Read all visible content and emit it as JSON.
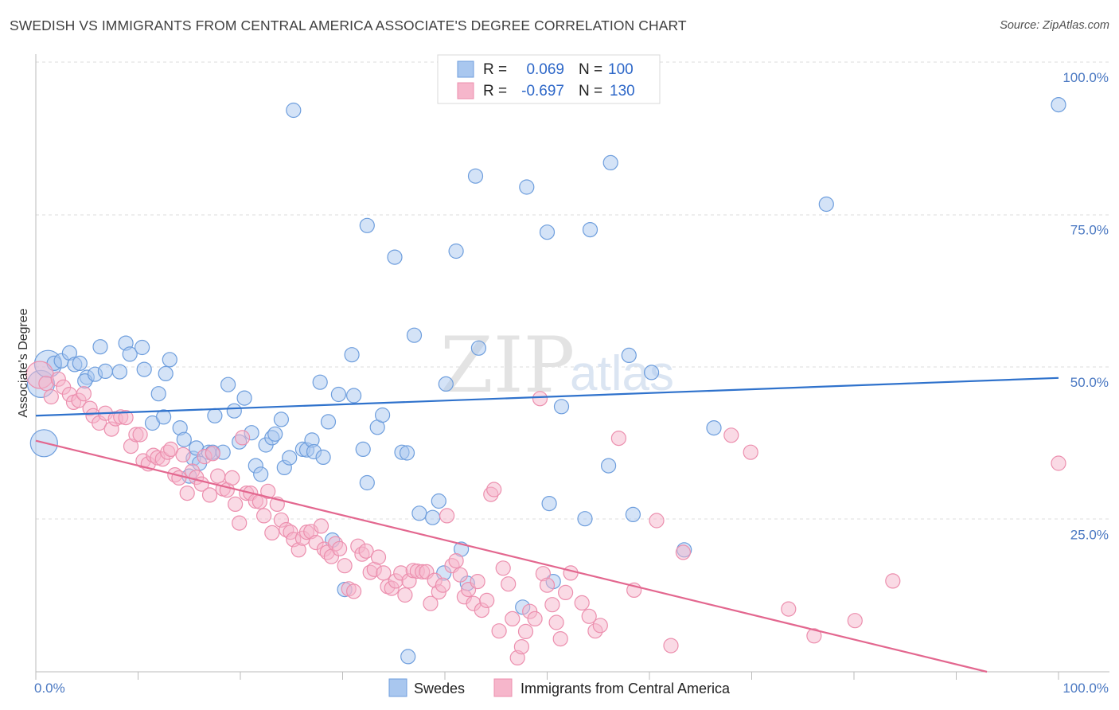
{
  "title": "SWEDISH VS IMMIGRANTS FROM CENTRAL AMERICA ASSOCIATE'S DEGREE CORRELATION CHART",
  "source": "Source: ZipAtlas.com",
  "watermark": {
    "zip": "ZIP",
    "atlas": "atlas"
  },
  "colors": {
    "blue_fill": "#a9c7ef",
    "blue_stroke": "#6e9edd",
    "blue_line": "#2f72cc",
    "pink_fill": "#f6b6cb",
    "pink_stroke": "#ec8fae",
    "pink_line": "#e3678f",
    "axis_text": "#4a78c2",
    "grid": "#dddddd"
  },
  "legend": {
    "rows": [
      {
        "r_label": "R =",
        "r_value": "0.069",
        "n_label": "N =",
        "n_value": "100"
      },
      {
        "r_label": "R =",
        "r_value": "-0.697",
        "n_label": "N =",
        "n_value": "130"
      }
    ]
  },
  "chart_data": {
    "type": "scatter",
    "title": "SWEDISH VS IMMIGRANTS FROM CENTRAL AMERICA ASSOCIATE'S DEGREE CORRELATION CHART",
    "xlabel": "",
    "ylabel": "Associate's Degree",
    "xlim": [
      0,
      100
    ],
    "ylim": [
      0,
      100
    ],
    "x_tick_labels": [
      "0.0%",
      "100.0%"
    ],
    "y_tick_values": [
      25,
      50,
      75,
      100
    ],
    "y_tick_labels": [
      "25.0%",
      "50.0%",
      "75.0%",
      "100.0%"
    ],
    "grid": true,
    "legend_position": "top-center",
    "series": [
      {
        "name": "Swedes",
        "R": 0.069,
        "N": 100,
        "trend": {
          "x0": 0,
          "y0": 42.0,
          "x1": 100,
          "y1": 48.2
        },
        "points": [
          [
            0.8,
            37.5,
            1
          ],
          [
            0.5,
            47.2,
            1
          ],
          [
            1.2,
            50.5,
            1
          ],
          [
            1.8,
            50.6,
            0
          ],
          [
            2.5,
            51.0,
            0
          ],
          [
            3.3,
            52.3,
            0
          ],
          [
            3.8,
            50.4,
            0
          ],
          [
            4.3,
            50.6,
            0
          ],
          [
            5.0,
            48.3,
            0
          ],
          [
            4.8,
            47.7,
            0
          ],
          [
            5.8,
            48.8,
            0
          ],
          [
            6.3,
            53.3,
            0
          ],
          [
            6.8,
            49.3,
            0
          ],
          [
            8.2,
            49.2,
            0
          ],
          [
            8.8,
            53.9,
            0
          ],
          [
            9.2,
            52.1,
            0
          ],
          [
            10.4,
            53.2,
            0
          ],
          [
            10.6,
            49.6,
            0
          ],
          [
            11.4,
            40.8,
            0
          ],
          [
            12.0,
            45.6,
            0
          ],
          [
            12.5,
            41.8,
            0
          ],
          [
            12.7,
            48.9,
            0
          ],
          [
            13.1,
            51.2,
            0
          ],
          [
            14.1,
            40.0,
            0
          ],
          [
            14.5,
            38.1,
            0
          ],
          [
            15.0,
            32.1,
            0
          ],
          [
            15.4,
            35.0,
            0
          ],
          [
            15.7,
            36.7,
            0
          ],
          [
            16.0,
            34.2,
            0
          ],
          [
            16.9,
            36.0,
            0
          ],
          [
            17.3,
            36.0,
            0
          ],
          [
            17.5,
            42.0,
            0
          ],
          [
            18.3,
            36.0,
            0
          ],
          [
            18.8,
            47.1,
            0
          ],
          [
            19.4,
            42.8,
            0
          ],
          [
            19.9,
            37.7,
            0
          ],
          [
            20.4,
            44.9,
            0
          ],
          [
            21.1,
            39.2,
            0
          ],
          [
            21.5,
            33.8,
            0
          ],
          [
            22.0,
            32.4,
            0
          ],
          [
            22.5,
            37.2,
            0
          ],
          [
            23.1,
            38.4,
            0
          ],
          [
            23.4,
            39.0,
            0
          ],
          [
            24.0,
            41.4,
            0
          ],
          [
            24.3,
            33.5,
            0
          ],
          [
            24.8,
            35.1,
            0
          ],
          [
            25.2,
            92.1,
            0
          ],
          [
            26.1,
            36.5,
            0
          ],
          [
            26.5,
            36.4,
            0
          ],
          [
            27.0,
            38.0,
            0
          ],
          [
            27.2,
            36.1,
            0
          ],
          [
            27.8,
            47.5,
            0
          ],
          [
            28.1,
            35.2,
            0
          ],
          [
            28.6,
            41.0,
            0
          ],
          [
            29.0,
            21.6,
            0
          ],
          [
            29.6,
            45.5,
            0
          ],
          [
            30.2,
            13.5,
            0
          ],
          [
            30.9,
            52.0,
            0
          ],
          [
            31.1,
            45.3,
            0
          ],
          [
            32.0,
            36.5,
            0
          ],
          [
            32.4,
            73.2,
            0
          ],
          [
            32.4,
            31.0,
            0
          ],
          [
            33.4,
            40.1,
            0
          ],
          [
            33.9,
            42.1,
            0
          ],
          [
            35.1,
            68.0,
            0
          ],
          [
            35.8,
            36.0,
            0
          ],
          [
            36.3,
            35.9,
            0
          ],
          [
            36.4,
            2.5,
            0
          ],
          [
            37.0,
            55.2,
            0
          ],
          [
            37.5,
            26.0,
            0
          ],
          [
            38.8,
            25.3,
            0
          ],
          [
            39.4,
            28.0,
            0
          ],
          [
            39.9,
            16.2,
            0
          ],
          [
            40.1,
            47.2,
            0
          ],
          [
            41.1,
            69.0,
            0
          ],
          [
            41.6,
            20.1,
            0
          ],
          [
            42.2,
            14.5,
            0
          ],
          [
            43.0,
            81.3,
            0
          ],
          [
            43.3,
            53.1,
            0
          ],
          [
            47.6,
            10.6,
            0
          ],
          [
            48.0,
            79.5,
            0
          ],
          [
            50.0,
            72.1,
            0
          ],
          [
            50.2,
            27.6,
            0
          ],
          [
            50.6,
            14.8,
            0
          ],
          [
            51.4,
            43.5,
            0
          ],
          [
            53.7,
            25.1,
            0
          ],
          [
            54.2,
            72.5,
            0
          ],
          [
            56.2,
            83.5,
            0
          ],
          [
            56.0,
            33.8,
            0
          ],
          [
            58.0,
            51.9,
            0
          ],
          [
            58.4,
            25.8,
            0
          ],
          [
            60.2,
            49.1,
            0
          ],
          [
            63.4,
            20.0,
            0
          ],
          [
            66.3,
            40.0,
            0
          ],
          [
            77.3,
            76.7,
            0
          ],
          [
            100.0,
            93.0,
            0
          ]
        ]
      },
      {
        "name": "Immigrants from Central America",
        "R": -0.697,
        "N": 130,
        "trend": {
          "x0": 0,
          "y0": 37.9,
          "x1": 93,
          "y1": 0
        },
        "points": [
          [
            0.4,
            48.7,
            1
          ],
          [
            1.0,
            47.3,
            0
          ],
          [
            1.5,
            45.1,
            0
          ],
          [
            2.2,
            48.0,
            0
          ],
          [
            2.7,
            46.7,
            0
          ],
          [
            3.3,
            45.5,
            0
          ],
          [
            3.7,
            44.2,
            0
          ],
          [
            4.2,
            44.5,
            0
          ],
          [
            4.7,
            45.6,
            0
          ],
          [
            5.3,
            43.2,
            0
          ],
          [
            5.6,
            42.0,
            0
          ],
          [
            6.2,
            40.8,
            0
          ],
          [
            6.8,
            42.4,
            0
          ],
          [
            7.4,
            39.8,
            0
          ],
          [
            7.8,
            41.5,
            0
          ],
          [
            8.3,
            41.8,
            0
          ],
          [
            8.8,
            41.7,
            0
          ],
          [
            9.3,
            37.0,
            0
          ],
          [
            9.8,
            38.9,
            0
          ],
          [
            10.2,
            38.9,
            0
          ],
          [
            10.5,
            34.6,
            0
          ],
          [
            11.0,
            34.1,
            0
          ],
          [
            11.5,
            35.5,
            0
          ],
          [
            11.9,
            35.1,
            0
          ],
          [
            12.4,
            34.9,
            0
          ],
          [
            12.9,
            36.0,
            0
          ],
          [
            13.2,
            36.5,
            0
          ],
          [
            13.6,
            32.3,
            0
          ],
          [
            14.0,
            31.8,
            0
          ],
          [
            14.4,
            35.6,
            0
          ],
          [
            14.8,
            29.3,
            0
          ],
          [
            15.3,
            32.9,
            0
          ],
          [
            15.7,
            31.9,
            0
          ],
          [
            16.2,
            30.8,
            0
          ],
          [
            16.5,
            35.3,
            0
          ],
          [
            17.0,
            29.0,
            0
          ],
          [
            17.3,
            35.8,
            0
          ],
          [
            17.8,
            32.1,
            0
          ],
          [
            18.3,
            30.0,
            0
          ],
          [
            18.7,
            29.8,
            0
          ],
          [
            19.2,
            31.8,
            0
          ],
          [
            19.5,
            27.5,
            0
          ],
          [
            19.9,
            24.4,
            0
          ],
          [
            20.2,
            38.4,
            0
          ],
          [
            20.6,
            29.3,
            0
          ],
          [
            21.0,
            29.3,
            0
          ],
          [
            21.5,
            28.0,
            0
          ],
          [
            21.9,
            27.9,
            0
          ],
          [
            22.3,
            25.6,
            0
          ],
          [
            22.7,
            29.6,
            0
          ],
          [
            23.1,
            22.8,
            0
          ],
          [
            23.6,
            27.5,
            0
          ],
          [
            24.0,
            24.9,
            0
          ],
          [
            24.5,
            23.3,
            0
          ],
          [
            24.9,
            22.9,
            0
          ],
          [
            25.2,
            21.7,
            0
          ],
          [
            25.7,
            20.0,
            0
          ],
          [
            26.1,
            21.9,
            0
          ],
          [
            26.5,
            22.9,
            0
          ],
          [
            26.9,
            23.0,
            0
          ],
          [
            27.4,
            21.2,
            0
          ],
          [
            27.9,
            23.9,
            0
          ],
          [
            28.2,
            20.1,
            0
          ],
          [
            28.5,
            19.6,
            0
          ],
          [
            28.9,
            18.9,
            0
          ],
          [
            29.3,
            21.0,
            0
          ],
          [
            29.7,
            20.2,
            0
          ],
          [
            30.2,
            17.4,
            0
          ],
          [
            30.6,
            13.6,
            0
          ],
          [
            31.1,
            13.2,
            0
          ],
          [
            31.5,
            20.6,
            0
          ],
          [
            31.9,
            19.3,
            0
          ],
          [
            32.3,
            19.8,
            0
          ],
          [
            32.7,
            16.3,
            0
          ],
          [
            33.1,
            16.8,
            0
          ],
          [
            33.5,
            18.8,
            0
          ],
          [
            34.0,
            16.2,
            0
          ],
          [
            34.4,
            14.0,
            0
          ],
          [
            34.8,
            13.7,
            0
          ],
          [
            35.2,
            14.9,
            0
          ],
          [
            35.7,
            16.2,
            0
          ],
          [
            36.1,
            12.6,
            0
          ],
          [
            36.5,
            14.9,
            0
          ],
          [
            36.9,
            16.6,
            0
          ],
          [
            37.3,
            16.5,
            0
          ],
          [
            37.8,
            16.4,
            0
          ],
          [
            38.2,
            16.4,
            0
          ],
          [
            38.6,
            11.2,
            0
          ],
          [
            39.0,
            15.0,
            0
          ],
          [
            39.4,
            13.1,
            0
          ],
          [
            39.8,
            14.2,
            0
          ],
          [
            40.2,
            25.6,
            0
          ],
          [
            40.7,
            17.4,
            0
          ],
          [
            41.1,
            18.2,
            0
          ],
          [
            41.5,
            15.9,
            0
          ],
          [
            41.9,
            12.3,
            0
          ],
          [
            42.3,
            13.5,
            0
          ],
          [
            42.8,
            11.2,
            0
          ],
          [
            43.2,
            14.8,
            0
          ],
          [
            43.6,
            10.1,
            0
          ],
          [
            44.1,
            11.7,
            0
          ],
          [
            44.5,
            29.1,
            0
          ],
          [
            44.8,
            29.9,
            0
          ],
          [
            45.3,
            6.7,
            0
          ],
          [
            45.7,
            17.0,
            0
          ],
          [
            46.2,
            14.4,
            0
          ],
          [
            46.6,
            8.7,
            0
          ],
          [
            47.1,
            2.3,
            0
          ],
          [
            47.5,
            4.1,
            0
          ],
          [
            47.9,
            6.6,
            0
          ],
          [
            48.3,
            9.9,
            0
          ],
          [
            48.8,
            8.7,
            0
          ],
          [
            49.3,
            44.8,
            0
          ],
          [
            49.6,
            16.1,
            0
          ],
          [
            50.0,
            14.2,
            0
          ],
          [
            50.5,
            11.0,
            0
          ],
          [
            50.9,
            8.1,
            0
          ],
          [
            51.3,
            5.4,
            0
          ],
          [
            51.8,
            13.0,
            0
          ],
          [
            52.3,
            16.2,
            0
          ],
          [
            53.4,
            11.3,
            0
          ],
          [
            54.1,
            9.1,
            0
          ],
          [
            54.7,
            6.7,
            0
          ],
          [
            55.2,
            7.6,
            0
          ],
          [
            57.0,
            38.3,
            0
          ],
          [
            58.5,
            13.4,
            0
          ],
          [
            60.7,
            24.8,
            0
          ],
          [
            62.1,
            4.3,
            0
          ],
          [
            63.3,
            19.6,
            0
          ],
          [
            68.0,
            38.8,
            0
          ],
          [
            69.9,
            36.0,
            0
          ],
          [
            73.6,
            10.3,
            0
          ],
          [
            76.1,
            5.9,
            0
          ],
          [
            80.1,
            8.4,
            0
          ],
          [
            83.8,
            14.9,
            0
          ],
          [
            100.0,
            34.2,
            0
          ]
        ]
      }
    ]
  }
}
